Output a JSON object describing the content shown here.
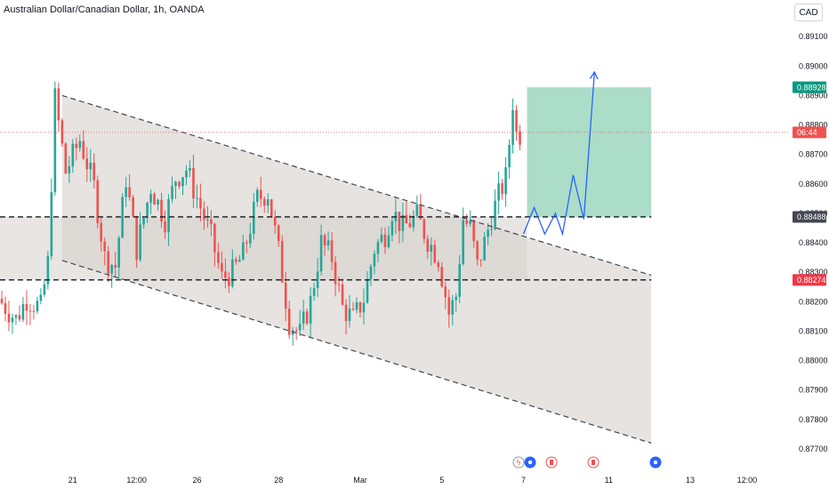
{
  "header": {
    "title": "Australian Dollar/Canadian Dollar, 1h, OANDA",
    "currency": "CAD"
  },
  "colors": {
    "up": "#26a69a",
    "down": "#ef5350",
    "channel_fill": "#d6d0cc",
    "target_zone": "#8fd1b5",
    "stop_zone": "#f28b8b",
    "projection": "#2962ff",
    "price_line": "#ef5350"
  },
  "price_axis": {
    "min": 0.877,
    "max": 0.8917,
    "ticks": [
      "0.89100",
      "0.89000",
      "0.88900",
      "0.88800",
      "0.88700",
      "0.88600",
      "0.88500",
      "0.88400",
      "0.88300",
      "0.88200",
      "0.88100",
      "0.88000",
      "0.87900",
      "0.87800",
      "0.87700"
    ],
    "tick_values": [
      0.891,
      0.89,
      0.889,
      0.888,
      0.887,
      0.886,
      0.885,
      0.884,
      0.883,
      0.882,
      0.881,
      0.88,
      0.879,
      0.878,
      0.877
    ]
  },
  "time_axis": {
    "labels": [
      "21",
      "12:00",
      "26",
      "28",
      "Mar",
      "5",
      "7",
      "11",
      "13",
      "12:00"
    ],
    "bar_index": [
      20,
      38,
      55,
      78,
      101,
      124,
      147,
      171,
      194,
      210
    ]
  },
  "price_badges": [
    {
      "text": "0.88928",
      "value": 0.88928,
      "color": "#089981"
    },
    {
      "text": "06:44",
      "value": 0.88775,
      "color": "#ef5350"
    },
    {
      "text": "0.88488",
      "value": 0.88488,
      "color": "#434651"
    },
    {
      "text": "0.88274",
      "value": 0.88274,
      "color": "#f23645"
    }
  ],
  "chart_data": {
    "type": "candlestick",
    "ohlc_anchors": [
      [
        0,
        0.8821
      ],
      [
        5,
        0.8814
      ],
      [
        8,
        0.8821
      ],
      [
        12,
        0.8818
      ],
      [
        14,
        0.8833
      ],
      [
        16,
        0.8889
      ],
      [
        19,
        0.8864
      ],
      [
        23,
        0.8875
      ],
      [
        27,
        0.8859
      ],
      [
        30,
        0.8835
      ],
      [
        33,
        0.8832
      ],
      [
        36,
        0.8862
      ],
      [
        39,
        0.8838
      ],
      [
        43,
        0.8859
      ],
      [
        47,
        0.8848
      ],
      [
        50,
        0.8862
      ],
      [
        53,
        0.8865
      ],
      [
        57,
        0.8852
      ],
      [
        60,
        0.8842
      ],
      [
        63,
        0.8828
      ],
      [
        66,
        0.883
      ],
      [
        69,
        0.8836
      ],
      [
        73,
        0.8855
      ],
      [
        76,
        0.8857
      ],
      [
        79,
        0.8837
      ],
      [
        82,
        0.8813
      ],
      [
        85,
        0.8809
      ],
      [
        88,
        0.882
      ],
      [
        91,
        0.884
      ],
      [
        94,
        0.8835
      ],
      [
        97,
        0.8818
      ],
      [
        100,
        0.8814
      ],
      [
        103,
        0.8821
      ],
      [
        106,
        0.8838
      ],
      [
        109,
        0.8843
      ],
      [
        111,
        0.8851
      ],
      [
        114,
        0.8845
      ],
      [
        118,
        0.8849
      ],
      [
        121,
        0.8841
      ],
      [
        124,
        0.8835
      ],
      [
        127,
        0.8816
      ],
      [
        129,
        0.8822
      ],
      [
        131,
        0.8848
      ],
      [
        133,
        0.8845
      ],
      [
        135,
        0.8832
      ],
      [
        137,
        0.884
      ],
      [
        139,
        0.8849
      ],
      [
        141,
        0.8856
      ],
      [
        143,
        0.8862
      ],
      [
        144,
        0.8874
      ],
      [
        145,
        0.8888
      ],
      [
        146,
        0.8877
      ]
    ],
    "channel": {
      "upper": [
        [
          17,
          0.889
        ],
        [
          183,
          0.8829
        ]
      ],
      "lower": [
        [
          17,
          0.8834
        ],
        [
          183,
          0.8772
        ]
      ]
    },
    "horizontal_levels": [
      0.88488,
      0.88274
    ],
    "target_zone": {
      "bars": [
        148,
        183
      ],
      "from": 0.88488,
      "to": 0.88928
    },
    "stop_zone": {
      "bars": [
        148,
        183
      ],
      "from": 0.88274,
      "to": 0.88488
    },
    "projection_path": [
      [
        147,
        0.8843
      ],
      [
        150,
        0.8852
      ],
      [
        153,
        0.8843
      ],
      [
        156,
        0.885
      ],
      [
        158,
        0.8843
      ],
      [
        161,
        0.8863
      ],
      [
        164,
        0.8848
      ],
      [
        167,
        0.8898
      ]
    ]
  }
}
